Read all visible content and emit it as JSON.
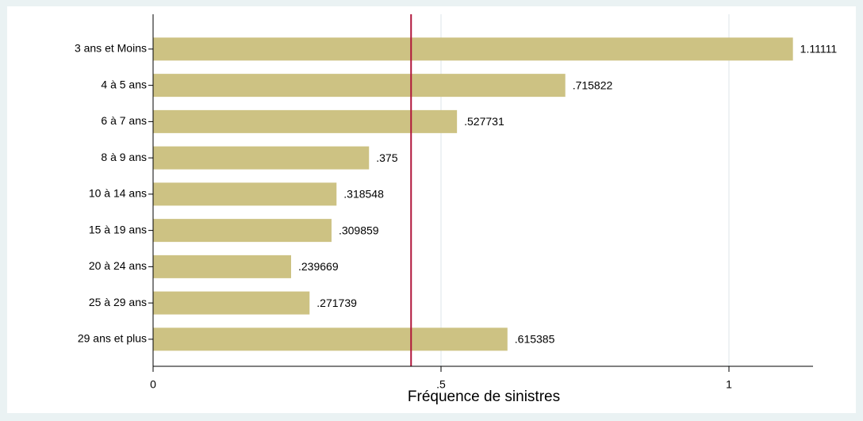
{
  "chart_data": {
    "type": "barh",
    "xlabel": "Fréquence de sinistres",
    "categories": [
      "3 ans et Moins",
      "4 à 5 ans",
      "6 à 7 ans",
      "8 à 9 ans",
      "10 à 14 ans",
      "15 à 19 ans",
      "20 à 24 ans",
      "25 à 29 ans",
      "29 ans et plus"
    ],
    "values": [
      1.11111,
      0.715822,
      0.527731,
      0.375,
      0.318548,
      0.309859,
      0.239669,
      0.271739,
      0.615385
    ],
    "value_labels": [
      "1.11111",
      ".715822",
      ".527731",
      ".375",
      ".318548",
      ".309859",
      ".239669",
      ".271739",
      ".615385"
    ],
    "color": "#cdc283",
    "xlim": [
      0,
      1.146
    ],
    "xticks": [
      0,
      {
        "value": 0.5,
        "label": ".5"
      },
      1
    ],
    "grid": true,
    "reference_line": 0.448,
    "reference_color": "#b0163b"
  }
}
